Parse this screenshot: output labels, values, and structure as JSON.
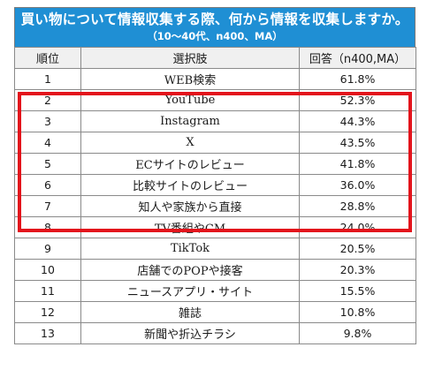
{
  "header": {
    "question": "買い物について情報収集する際、何から情報を収集しますか。",
    "subtitle": "（10～40代、n400、MA）"
  },
  "columns": [
    "順位",
    "選択肢",
    "回答（n400,MA）"
  ],
  "rows": [
    {
      "rank": "1",
      "choice": "WEB検索",
      "percent": "61.8%"
    },
    {
      "rank": "2",
      "choice": "YouTube",
      "percent": "52.3%"
    },
    {
      "rank": "3",
      "choice": "Instagram",
      "percent": "44.3%"
    },
    {
      "rank": "4",
      "choice": "X",
      "percent": "43.5%"
    },
    {
      "rank": "5",
      "choice": "ECサイトのレビュー",
      "percent": "41.8%"
    },
    {
      "rank": "6",
      "choice": "比較サイトのレビュー",
      "percent": "36.0%"
    },
    {
      "rank": "7",
      "choice": "知人や家族から直接",
      "percent": "28.8%"
    },
    {
      "rank": "8",
      "choice": "TV番組やCM",
      "percent": "24.0%"
    },
    {
      "rank": "9",
      "choice": "TikTok",
      "percent": "20.5%"
    },
    {
      "rank": "10",
      "choice": "店舗でのPOPや接客",
      "percent": "20.3%"
    },
    {
      "rank": "11",
      "choice": "ニュースアプリ・サイト",
      "percent": "15.5%"
    },
    {
      "rank": "12",
      "choice": "雑誌",
      "percent": "10.8%"
    },
    {
      "rank": "13",
      "choice": "新聞や折込チラシ",
      "percent": "9.8%"
    }
  ],
  "colors": {
    "header_bg": "#1f8fd4",
    "header_row_bg": "#f0f0f0",
    "highlight": "#e3141c",
    "border": "#8a8a8a"
  }
}
